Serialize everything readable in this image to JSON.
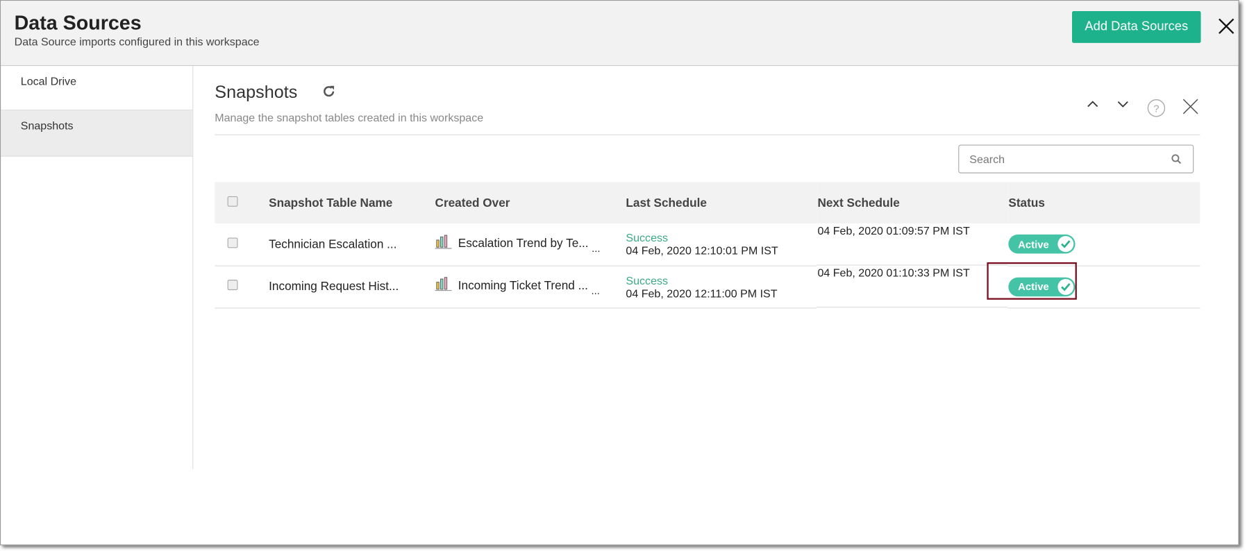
{
  "header": {
    "title": "Data Sources",
    "subtitle": "Data Source imports configured in this workspace",
    "add_button": "Add Data Sources"
  },
  "sidebar": {
    "items": [
      {
        "label": "Local Drive"
      },
      {
        "label": "Snapshots",
        "active": true
      }
    ]
  },
  "main": {
    "title": "Snapshots",
    "description": "Manage the snapshot tables created in this workspace",
    "search_placeholder": "Search"
  },
  "table": {
    "columns": [
      "Snapshot Table Name",
      "Created Over",
      "Last Schedule",
      "Next Schedule",
      "Status"
    ],
    "rows": [
      {
        "name": "Technician Escalation ...",
        "created_over": "Escalation Trend by Te...",
        "last_status": "Success",
        "last_time": "04 Feb, 2020 12:10:01 PM IST",
        "next": "04 Feb, 2020 01:09:57 PM IST",
        "status": "Active"
      },
      {
        "name": "Incoming Request Hist...",
        "created_over": "Incoming Ticket Trend ...",
        "last_status": "Success",
        "last_time": "04 Feb, 2020 12:11:00 PM IST",
        "next": "04 Feb, 2020 01:10:33 PM IST",
        "status": "Active"
      }
    ],
    "ellipsis": "..."
  },
  "colors": {
    "accent": "#1db28b",
    "toggle": "#45c3a6",
    "success": "#3aa981",
    "highlight": "#7a0d1f"
  }
}
